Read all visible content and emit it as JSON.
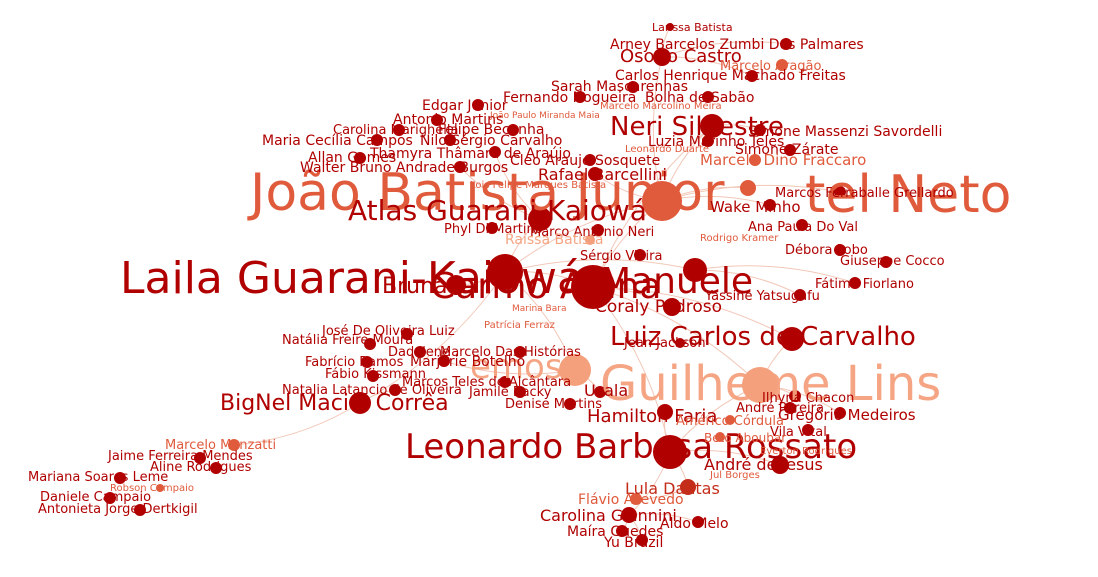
{
  "palette": {
    "dark": "#b00000",
    "mid": "#c42d1a",
    "light": "#e05a3c",
    "pale": "#f4a07c",
    "edge": "#f2c7b8"
  },
  "nodes": [
    {
      "id": "laila",
      "label": "Laila Guarani-Kaiowá",
      "r": 18,
      "tone": "dark"
    },
    {
      "id": "manuele",
      "label": "Manuele",
      "r": 12,
      "tone": "dark"
    },
    {
      "id": "carmo",
      "label": "Carmo Alana",
      "r": 22,
      "tone": "dark"
    },
    {
      "id": "joao",
      "label": "João Batista Junior",
      "r": 20,
      "tone": "light"
    },
    {
      "id": "tel",
      "label": "tel Neto",
      "r": 8,
      "tone": "light"
    },
    {
      "id": "leonardo",
      "label": "Leonardo Barbosa Rossato",
      "r": 17,
      "tone": "dark"
    },
    {
      "id": "luiz",
      "label": "Luiz Carlos de Carvalho",
      "r": 12,
      "tone": "dark"
    },
    {
      "id": "guilheme",
      "label": "Guilheme Lins",
      "r": 18,
      "tone": "pale"
    },
    {
      "id": "atlas",
      "label": "Atlas Guarani-Kaiowá",
      "r": 12,
      "tone": "dark"
    },
    {
      "id": "bignel",
      "label": "BigNel Maciel Corrêa",
      "r": 11,
      "tone": "dark"
    },
    {
      "id": "neri",
      "label": "Neri Silvestre",
      "r": 12,
      "tone": "dark"
    },
    {
      "id": "emos",
      "label": "emos",
      "r": 16,
      "tone": "pale"
    },
    {
      "id": "hamilton",
      "label": "Hamilton Faria",
      "r": 8,
      "tone": "dark"
    },
    {
      "id": "coraly",
      "label": "Coraly Pedroso",
      "r": 9,
      "tone": "dark"
    },
    {
      "id": "andre",
      "label": "André de Jesus",
      "r": 9,
      "tone": "dark"
    },
    {
      "id": "lula",
      "label": "Lula Dantas",
      "r": 8,
      "tone": "mid"
    },
    {
      "id": "carolina",
      "label": "Carolina Giannini",
      "r": 8,
      "tone": "dark"
    },
    {
      "id": "maira",
      "label": "Maíra Guedes",
      "r": 6,
      "tone": "dark"
    },
    {
      "id": "yuri",
      "label": "Yu Brazil",
      "r": 6,
      "tone": "dark"
    },
    {
      "id": "aldo",
      "label": "Aldo Melo",
      "r": 6,
      "tone": "dark"
    },
    {
      "id": "flavio",
      "label": "Flávio Azevedo",
      "r": 6,
      "tone": "light"
    },
    {
      "id": "osorio",
      "label": "Osorio Castro",
      "r": 9,
      "tone": "dark"
    },
    {
      "id": "arney",
      "label": "Arney Barcelos Zumbi Dos Palmares",
      "r": 6,
      "tone": "dark"
    },
    {
      "id": "larissa",
      "label": "Larissa Batista",
      "r": 4,
      "tone": "dark"
    },
    {
      "id": "marceloa",
      "label": "Marcelo Aragão",
      "r": 6,
      "tone": "light"
    },
    {
      "id": "carlosh",
      "label": "Carlos Henrique Machado Freitas",
      "r": 6,
      "tone": "dark"
    },
    {
      "id": "sarah",
      "label": "Sarah Mascarenhas",
      "r": 6,
      "tone": "dark"
    },
    {
      "id": "fernando",
      "label": "Fernando Nogueira",
      "r": 6,
      "tone": "dark"
    },
    {
      "id": "bolha",
      "label": "Bolha de Sabão",
      "r": 6,
      "tone": "dark"
    },
    {
      "id": "edgar",
      "label": "Edgar Junior",
      "r": 6,
      "tone": "dark"
    },
    {
      "id": "antonio",
      "label": "Antonio Martins",
      "r": 6,
      "tone": "dark"
    },
    {
      "id": "carolinam",
      "label": "Carolina Marighella",
      "r": 6,
      "tone": "dark"
    },
    {
      "id": "felipe",
      "label": "Felipe Becanha",
      "r": 6,
      "tone": "dark"
    },
    {
      "id": "mariacecilia",
      "label": "Maria Cecília Campos",
      "r": 6,
      "tone": "dark"
    },
    {
      "id": "nilo",
      "label": "Nilo Sérgio Carvalho",
      "r": 6,
      "tone": "dark"
    },
    {
      "id": "allan",
      "label": "Allan Gomes",
      "r": 6,
      "tone": "dark"
    },
    {
      "id": "thamyra",
      "label": "Thamyra Thâmara de Araújo",
      "r": 6,
      "tone": "dark"
    },
    {
      "id": "walter",
      "label": "Walter Bruno Andrade Burgos",
      "r": 6,
      "tone": "dark"
    },
    {
      "id": "cleo",
      "label": "Cleo Araujo Sosquete",
      "r": 6,
      "tone": "dark"
    },
    {
      "id": "rafael",
      "label": "Rafael Barcellini",
      "r": 7,
      "tone": "dark"
    },
    {
      "id": "simone",
      "label": "Simone Massenzi Savordelli",
      "r": 6,
      "tone": "dark"
    },
    {
      "id": "luzia",
      "label": "Luzia Marinho Teles",
      "r": 6,
      "tone": "dark"
    },
    {
      "id": "simonez",
      "label": "Simone Zárate",
      "r": 6,
      "tone": "dark"
    },
    {
      "id": "marcelod",
      "label": "Marcelo Dino Fraccaro",
      "r": 6,
      "tone": "light"
    },
    {
      "id": "marcos",
      "label": "Marcos Ferraballe Grellardo",
      "r": 6,
      "tone": "dark"
    },
    {
      "id": "wake",
      "label": "Wake Minho",
      "r": 6,
      "tone": "dark"
    },
    {
      "id": "ana",
      "label": "Ana Paula Do Val",
      "r": 6,
      "tone": "dark"
    },
    {
      "id": "debora",
      "label": "Débora Lobo",
      "r": 6,
      "tone": "dark"
    },
    {
      "id": "giuseppe",
      "label": "Giuseppe Cocco",
      "r": 6,
      "tone": "dark"
    },
    {
      "id": "fatima",
      "label": "Fátima Fiorlano",
      "r": 6,
      "tone": "dark"
    },
    {
      "id": "yassine",
      "label": "Yassine Yatsugafu",
      "r": 6,
      "tone": "dark"
    },
    {
      "id": "jose",
      "label": "José De Oliveira Luiz",
      "r": 6,
      "tone": "dark"
    },
    {
      "id": "natalia",
      "label": "Natália Freire Moura",
      "r": 6,
      "tone": "dark"
    },
    {
      "id": "dadalene",
      "label": "Dadalene",
      "r": 6,
      "tone": "dark"
    },
    {
      "id": "marcelodh",
      "label": "Marcelo Das Histórias",
      "r": 6,
      "tone": "dark"
    },
    {
      "id": "fabricio",
      "label": "Fabrício Ramos",
      "r": 6,
      "tone": "dark"
    },
    {
      "id": "marjorie",
      "label": "Marjorie Botelho",
      "r": 6,
      "tone": "dark"
    },
    {
      "id": "fabio",
      "label": "Fábio Kissmann",
      "r": 6,
      "tone": "dark"
    },
    {
      "id": "marcost",
      "label": "Marcos Teles de Alcântara",
      "r": 6,
      "tone": "dark"
    },
    {
      "id": "natalial",
      "label": "Natalia Latancio de Oliveira",
      "r": 6,
      "tone": "dark"
    },
    {
      "id": "jamile",
      "label": "Jamile Racky",
      "r": 6,
      "tone": "dark"
    },
    {
      "id": "uzala",
      "label": "Uzala",
      "r": 6,
      "tone": "dark"
    },
    {
      "id": "denise",
      "label": "Denise Martins",
      "r": 6,
      "tone": "dark"
    },
    {
      "id": "ilhyna",
      "label": "Ilhyna Chacon",
      "r": 6,
      "tone": "dark"
    },
    {
      "id": "andrep",
      "label": "André Pereira",
      "r": 6,
      "tone": "dark"
    },
    {
      "id": "gregorio",
      "label": "Gregório Medeiros",
      "r": 6,
      "tone": "dark"
    },
    {
      "id": "vila",
      "label": "Vila Vital",
      "r": 6,
      "tone": "dark"
    },
    {
      "id": "marcelom",
      "label": "Marcelo Manzatti",
      "r": 6,
      "tone": "light"
    },
    {
      "id": "jaime",
      "label": "Jaime Ferreira Mendes",
      "r": 6,
      "tone": "dark"
    },
    {
      "id": "aline",
      "label": "Aline Rodrigues",
      "r": 6,
      "tone": "dark"
    },
    {
      "id": "mariana",
      "label": "Mariana Soares Leme",
      "r": 6,
      "tone": "dark"
    },
    {
      "id": "robson",
      "label": "Robson Campaio",
      "r": 4,
      "tone": "light"
    },
    {
      "id": "daniele",
      "label": "Daniele Campaio",
      "r": 6,
      "tone": "dark"
    },
    {
      "id": "antonieta",
      "label": "Antonieta Jorge Dertkigil",
      "r": 6,
      "tone": "dark"
    },
    {
      "id": "marco",
      "label": "Marco Antonio Neri",
      "r": 6,
      "tone": "dark"
    },
    {
      "id": "phyl",
      "label": "Phyl Di Martino",
      "r": 6,
      "tone": "dark"
    },
    {
      "id": "raissa",
      "label": "Raissa Batista",
      "r": 5,
      "tone": "pale"
    },
    {
      "id": "sergio",
      "label": "Sérgio Vieira",
      "r": 6,
      "tone": "dark"
    },
    {
      "id": "bruna",
      "label": "Bruna",
      "r": 10,
      "tone": "dark"
    },
    {
      "id": "jean",
      "label": "Jean Jackson",
      "r": 5,
      "tone": "dark"
    },
    {
      "id": "americo",
      "label": "Américo Córdula",
      "r": 5,
      "tone": "light"
    },
    {
      "id": "beto",
      "label": "Beto Aboubar",
      "r": 5,
      "tone": "light"
    }
  ],
  "small_labels": [
    "Marcelo Marcolino Meira",
    "João Paulo Miranda Maia",
    "Leonardo Duarte",
    "Lois Felipe Marques Batista",
    "Rodrigo Kramer",
    "Patrícia Ferraz",
    "Marina Bara",
    "Everton Rodrigues",
    "Jul Borges"
  ],
  "edges": [
    [
      "laila",
      "carmo"
    ],
    [
      "laila",
      "manuele"
    ],
    [
      "laila",
      "atlas"
    ],
    [
      "laila",
      "bignel"
    ],
    [
      "laila",
      "joao"
    ],
    [
      "laila",
      "emos"
    ],
    [
      "laila",
      "bruna"
    ],
    [
      "carmo",
      "joao"
    ],
    [
      "carmo",
      "luiz"
    ],
    [
      "carmo",
      "guilheme"
    ],
    [
      "carmo",
      "leonardo"
    ],
    [
      "carmo",
      "coraly"
    ],
    [
      "carmo",
      "neri"
    ],
    [
      "joao",
      "tel"
    ],
    [
      "joao",
      "neri"
    ],
    [
      "joao",
      "osorio"
    ],
    [
      "joao",
      "rafael"
    ],
    [
      "leonardo",
      "guilheme"
    ],
    [
      "leonardo",
      "hamilton"
    ],
    [
      "leonardo",
      "lula"
    ],
    [
      "leonardo",
      "andre"
    ],
    [
      "leonardo",
      "carolina"
    ],
    [
      "guilheme",
      "luiz"
    ],
    [
      "guilheme",
      "ilhyna"
    ],
    [
      "guilheme",
      "gregorio"
    ],
    [
      "emos",
      "uzala"
    ],
    [
      "emos",
      "marjorie"
    ],
    [
      "bignel",
      "marcelom"
    ],
    [
      "bignel",
      "natalial"
    ],
    [
      "carolina",
      "maira"
    ],
    [
      "carolina",
      "yuri"
    ],
    [
      "carolina",
      "aldo"
    ],
    [
      "lula",
      "flavio"
    ],
    [
      "neri",
      "simone"
    ],
    [
      "neri",
      "luzia"
    ],
    [
      "osorio",
      "arney"
    ],
    [
      "osorio",
      "larissa"
    ],
    [
      "osorio",
      "carlosh"
    ],
    [
      "atlas",
      "thamyra"
    ],
    [
      "atlas",
      "walter"
    ],
    [
      "manuele",
      "yassine"
    ],
    [
      "manuele",
      "fatima"
    ],
    [
      "joao",
      "marcos"
    ],
    [
      "joao",
      "wake"
    ]
  ]
}
